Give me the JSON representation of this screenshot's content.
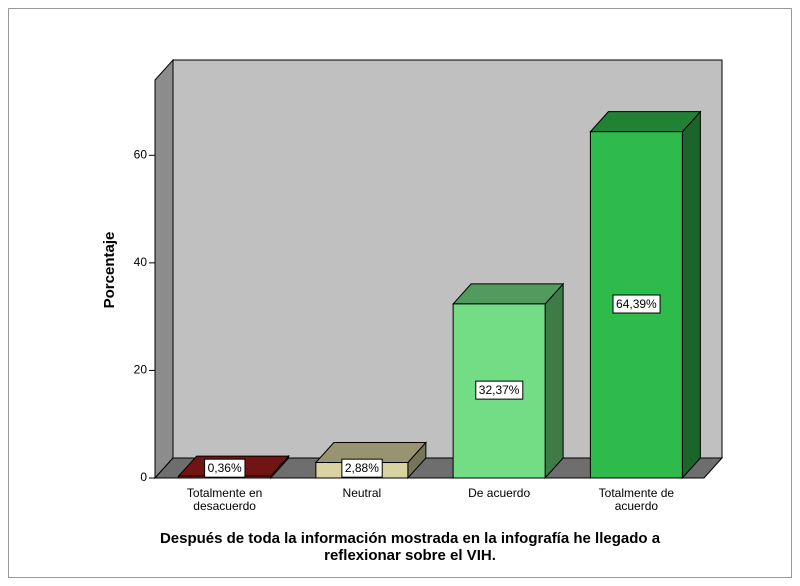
{
  "chart_data": {
    "type": "bar3d",
    "x_label": "Después de toda la información mostrada en la infografía he llegado a reflexionar sobre el VIH.",
    "y_label": "Porcentaje",
    "categories": [
      "Totalmente en desacuerdo",
      "Neutral",
      "De acuerdo",
      "Totalmente de acuerdo"
    ],
    "values": [
      0.36,
      2.88,
      32.37,
      64.39
    ],
    "value_labels": [
      "0,36%",
      "2,88%",
      "32,37%",
      "64,39%"
    ],
    "colors": [
      "#a01c1c",
      "#d9d2a2",
      "#72dd85",
      "#2fba4c"
    ],
    "ylim": [
      0,
      74
    ],
    "yticks": [
      0,
      20,
      40,
      60
    ],
    "grid": false
  }
}
